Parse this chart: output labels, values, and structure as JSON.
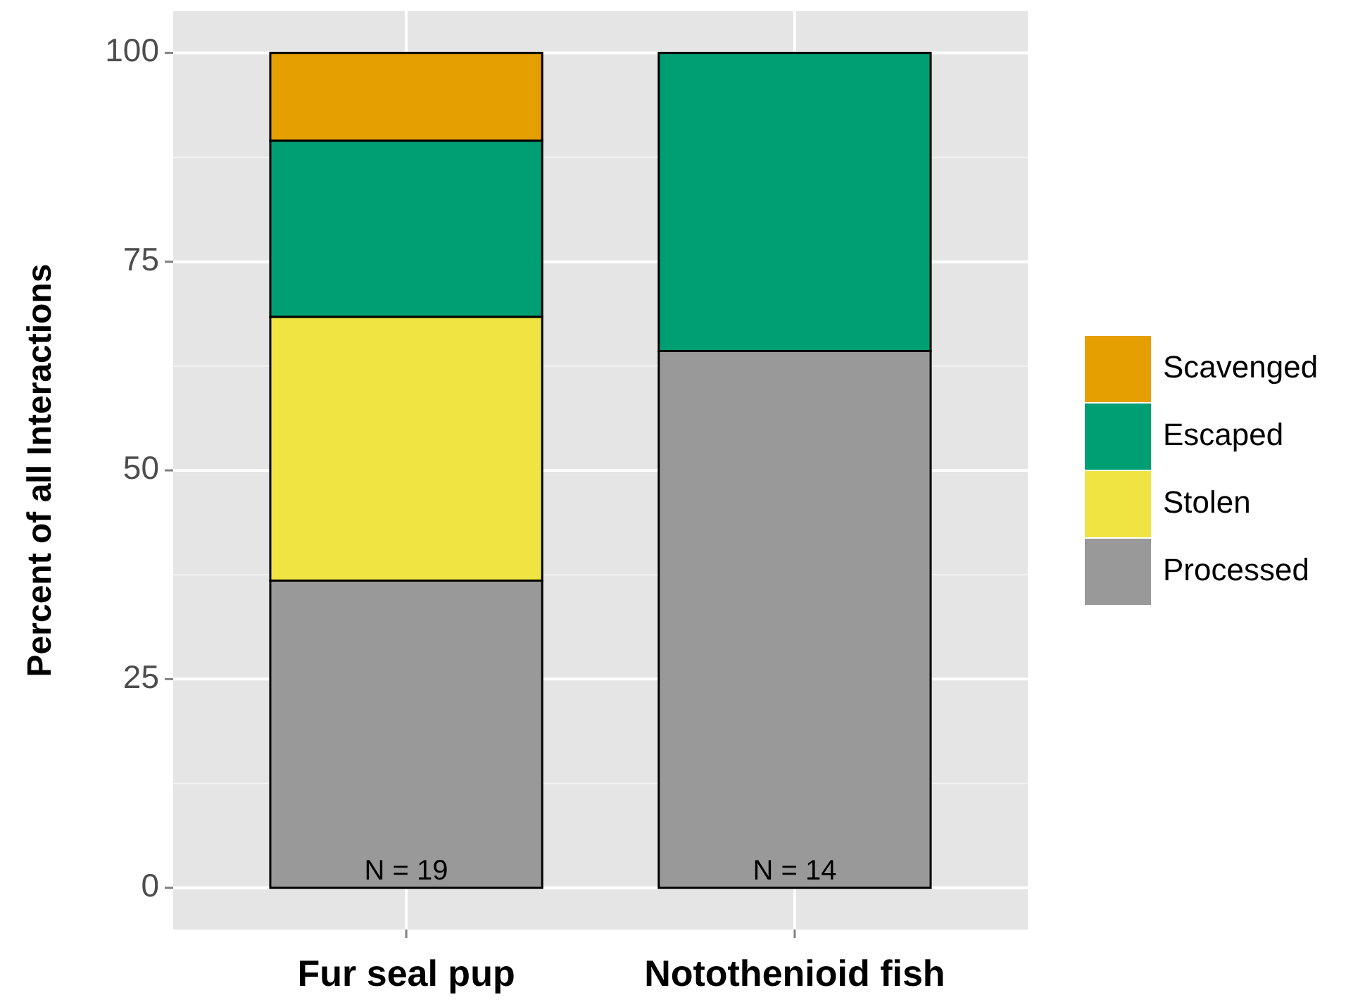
{
  "chart_data": {
    "type": "bar",
    "stacked": true,
    "ylabel": "Percent of all Interactions",
    "categories": [
      "Fur seal pup",
      "Notothenioid fish"
    ],
    "series": [
      {
        "name": "Processed",
        "color": "#999999",
        "values": [
          36.8,
          64.3
        ]
      },
      {
        "name": "Stolen",
        "color": "#f0e442",
        "values": [
          31.6,
          null
        ]
      },
      {
        "name": "Escaped",
        "color": "#009e73",
        "values": [
          21.1,
          35.7
        ]
      },
      {
        "name": "Scavenged",
        "color": "#e69f00",
        "values": [
          10.5,
          null
        ]
      }
    ],
    "ylim": [
      -5,
      105
    ],
    "yticks": [
      0,
      25,
      50,
      75,
      100
    ],
    "grid": true,
    "legend": "right",
    "annotations": [
      "N = 19",
      "N = 14"
    ]
  }
}
